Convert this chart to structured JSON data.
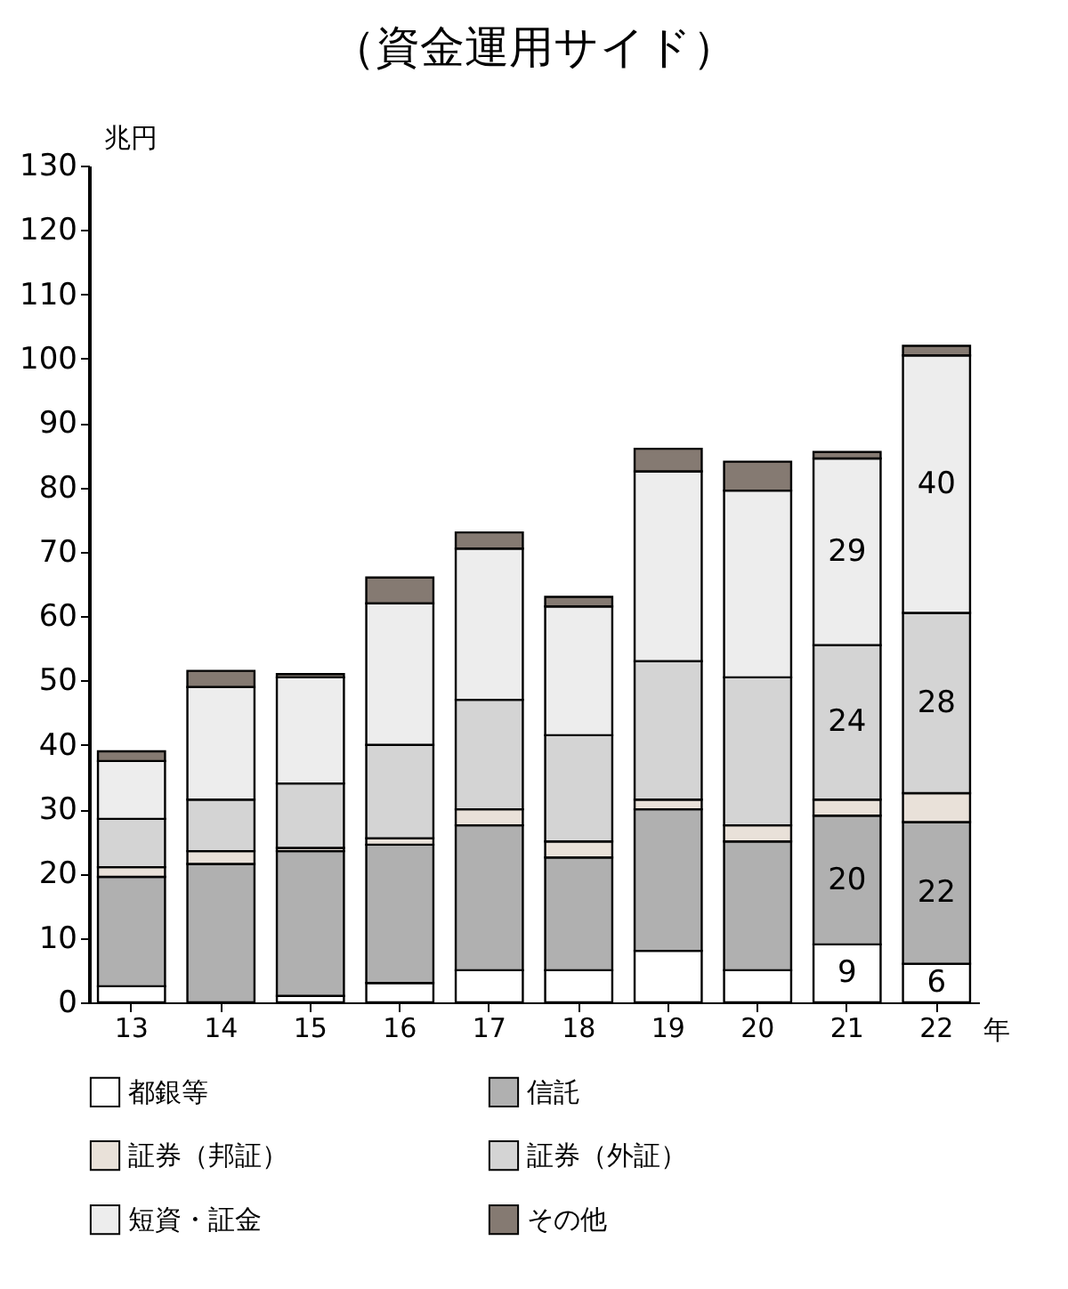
{
  "chart_data": {
    "type": "bar",
    "stacked": true,
    "title": "（資金運用サイド）",
    "ylabel": "兆円",
    "xlabel": "年",
    "categories": [
      "13",
      "14",
      "15",
      "16",
      "17",
      "18",
      "19",
      "20",
      "21",
      "22"
    ],
    "ylim": [
      0,
      130
    ],
    "yticks": [
      0,
      10,
      20,
      30,
      40,
      50,
      60,
      70,
      80,
      90,
      100,
      110,
      120,
      130
    ],
    "grid": false,
    "legend": "bottom",
    "series": [
      {
        "name": "都銀等",
        "color": "#ffffff",
        "values": [
          2.5,
          0,
          1,
          3,
          5,
          5,
          8,
          5,
          9,
          6
        ],
        "value_labels": [
          null,
          null,
          null,
          null,
          null,
          null,
          null,
          null,
          "9",
          "6"
        ]
      },
      {
        "name": "信託",
        "color": "#b0b0b0",
        "values": [
          17,
          21.5,
          22.5,
          21.5,
          22.5,
          17.5,
          22,
          20,
          20,
          22
        ],
        "value_labels": [
          null,
          null,
          null,
          null,
          null,
          null,
          null,
          null,
          "20",
          "22"
        ]
      },
      {
        "name": "証券（邦証）",
        "color": "#e9e1d9",
        "values": [
          1.5,
          2,
          0.5,
          1,
          2.5,
          2.5,
          1.5,
          2.5,
          2.5,
          4.5
        ]
      },
      {
        "name": "証券（外証）",
        "color": "#d4d4d4",
        "values": [
          7.5,
          8,
          10,
          14.5,
          17,
          16.5,
          21.5,
          23,
          24,
          28
        ],
        "value_labels": [
          null,
          null,
          null,
          null,
          null,
          null,
          null,
          null,
          "24",
          "28"
        ]
      },
      {
        "name": "短資・証金",
        "color": "#ededed",
        "values": [
          9,
          17.5,
          16.5,
          22,
          23.5,
          20,
          29.5,
          29,
          29,
          40
        ],
        "value_labels": [
          null,
          null,
          null,
          null,
          null,
          null,
          null,
          null,
          "29",
          "40"
        ]
      },
      {
        "name": "その他",
        "color": "#857a72",
        "values": [
          1.5,
          2.5,
          0.5,
          4,
          2.5,
          1.5,
          3.5,
          4.5,
          1,
          1.5
        ]
      }
    ]
  }
}
